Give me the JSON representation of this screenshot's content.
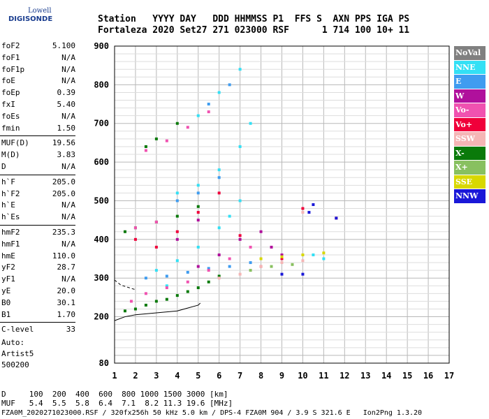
{
  "logo": {
    "line1": "Lowell",
    "line2": "DIGISONDE"
  },
  "header": {
    "row1": "Station   YYYY DAY   DDD HHMMSS P1  FFS S  AXN PPS IGA PS",
    "row2": "Fortaleza 2020 Set27 271 023000 RSF      1 714 100 10+ 11"
  },
  "params": [
    [
      {
        "k": "foF2",
        "v": "5.100"
      },
      {
        "k": "foF1",
        "v": "N/A"
      },
      {
        "k": "foF1p",
        "v": "N/A"
      },
      {
        "k": "foE",
        "v": "N/A"
      },
      {
        "k": "foEp",
        "v": "0.39"
      },
      {
        "k": "fxI",
        "v": "5.40"
      },
      {
        "k": "foEs",
        "v": "N/A"
      },
      {
        "k": "fmin",
        "v": "1.50"
      }
    ],
    [
      {
        "k": "MUF(D)",
        "v": "19.56"
      },
      {
        "k": "M(D)",
        "v": "3.83"
      },
      {
        "k": "D",
        "v": "N/A"
      }
    ],
    [
      {
        "k": "h`F",
        "v": "205.0"
      },
      {
        "k": "h`F2",
        "v": "205.0"
      },
      {
        "k": "h`E",
        "v": "N/A"
      },
      {
        "k": "h`Es",
        "v": "N/A"
      }
    ],
    [
      {
        "k": "hmF2",
        "v": "235.3"
      },
      {
        "k": "hmF1",
        "v": "N/A"
      },
      {
        "k": "hmE",
        "v": "110.0"
      },
      {
        "k": "yF2",
        "v": "28.7"
      },
      {
        "k": "yF1",
        "v": "N/A"
      },
      {
        "k": "yE",
        "v": "20.0"
      },
      {
        "k": "B0",
        "v": "30.1"
      },
      {
        "k": "B1",
        "v": "1.70"
      }
    ],
    [
      {
        "k": "C-level",
        "v": "33"
      }
    ]
  ],
  "auto": {
    "l1": "Auto:",
    "l2": "Artist5",
    "l3": "500200"
  },
  "legend": [
    {
      "label": "NoVal",
      "color": "#808080"
    },
    {
      "label": "NNE",
      "color": "#33e0f5"
    },
    {
      "label": "E",
      "color": "#3f9cf0"
    },
    {
      "label": "W",
      "color": "#b0109c"
    },
    {
      "label": "Vo-",
      "color": "#f052b0"
    },
    {
      "label": "Vo+",
      "color": "#f0003a"
    },
    {
      "label": "SSW",
      "color": "#f5b5b5"
    },
    {
      "label": "X-",
      "color": "#0a7a0a"
    },
    {
      "label": "X+",
      "color": "#88c060"
    },
    {
      "label": "SSE",
      "color": "#d8d800"
    },
    {
      "label": "NNW",
      "color": "#1a18d8"
    }
  ],
  "footer": {
    "row1": "D     100  200  400  600  800 1000 1500 3000 [km]",
    "row2": "MUF   5.4  5.5  5.8  6.4  7.1  8.2 11.3 19.6 [MHz]",
    "src": "FZA0M_2020271023000.RSF / 320fx256h 50 kHz 5.0 km / DPS-4 FZA0M 904 / 3.9 S 321.6 E   Ion2Png 1.3.20"
  },
  "chart_data": {
    "type": "scatter",
    "title": "",
    "xlabel": "",
    "ylabel": "",
    "xlim": [
      1,
      17
    ],
    "ylim": [
      80,
      900
    ],
    "x_ticks": [
      1,
      2,
      3,
      4,
      5,
      6,
      7,
      8,
      9,
      10,
      11,
      12,
      13,
      14,
      15,
      16,
      17
    ],
    "y_ticks": [
      80,
      200,
      300,
      400,
      500,
      600,
      700,
      800,
      900
    ],
    "grid": true,
    "series": [
      {
        "name": "X-",
        "color": "#0a7a0a",
        "points": [
          [
            1.5,
            215
          ],
          [
            2,
            220
          ],
          [
            2.5,
            230
          ],
          [
            3,
            240
          ],
          [
            3.5,
            245
          ],
          [
            4,
            255
          ],
          [
            4.5,
            265
          ],
          [
            5,
            275
          ],
          [
            5.5,
            290
          ],
          [
            6,
            305
          ],
          [
            1.5,
            420
          ],
          [
            2,
            430
          ],
          [
            3,
            445
          ],
          [
            4,
            460
          ],
          [
            5,
            485
          ],
          [
            2.5,
            640
          ],
          [
            3,
            660
          ],
          [
            4,
            700
          ]
        ]
      },
      {
        "name": "NNE",
        "color": "#33e0f5",
        "points": [
          [
            3,
            320
          ],
          [
            4,
            345
          ],
          [
            5,
            380
          ],
          [
            6,
            430
          ],
          [
            6.5,
            460
          ],
          [
            7,
            500
          ],
          [
            4,
            520
          ],
          [
            5,
            540
          ],
          [
            6,
            580
          ],
          [
            7,
            640
          ],
          [
            5,
            720
          ],
          [
            6,
            780
          ],
          [
            7,
            840
          ],
          [
            7.5,
            700
          ],
          [
            3.5,
            280
          ],
          [
            10.5,
            360
          ],
          [
            11,
            350
          ]
        ]
      },
      {
        "name": "E",
        "color": "#3f9cf0",
        "points": [
          [
            2.5,
            300
          ],
          [
            3.5,
            305
          ],
          [
            4.5,
            315
          ],
          [
            5.5,
            325
          ],
          [
            6.5,
            330
          ],
          [
            7.5,
            340
          ],
          [
            4,
            500
          ],
          [
            5,
            520
          ],
          [
            6,
            560
          ],
          [
            5.5,
            750
          ],
          [
            6.5,
            800
          ]
        ]
      },
      {
        "name": "Vo-",
        "color": "#f052b0",
        "points": [
          [
            1.8,
            240
          ],
          [
            2.5,
            260
          ],
          [
            3.5,
            275
          ],
          [
            4.5,
            290
          ],
          [
            5.5,
            320
          ],
          [
            6.5,
            350
          ],
          [
            7.5,
            380
          ],
          [
            2.5,
            630
          ],
          [
            3.5,
            655
          ],
          [
            4.5,
            690
          ],
          [
            5.5,
            730
          ],
          [
            2,
            430
          ],
          [
            3,
            445
          ]
        ]
      },
      {
        "name": "W",
        "color": "#b0109c",
        "points": [
          [
            5,
            330
          ],
          [
            6,
            360
          ],
          [
            7,
            400
          ],
          [
            8,
            420
          ],
          [
            8.5,
            380
          ],
          [
            9,
            360
          ],
          [
            4,
            400
          ],
          [
            5,
            450
          ]
        ]
      },
      {
        "name": "Vo+",
        "color": "#f0003a",
        "points": [
          [
            2,
            400
          ],
          [
            3,
            380
          ],
          [
            4,
            420
          ],
          [
            5,
            470
          ],
          [
            6,
            520
          ],
          [
            7,
            410
          ],
          [
            8,
            330
          ],
          [
            9,
            350
          ],
          [
            10,
            480
          ],
          [
            11.6,
            455
          ]
        ]
      },
      {
        "name": "NNW",
        "color": "#1a18d8",
        "points": [
          [
            10.5,
            490
          ],
          [
            10.3,
            470
          ],
          [
            9,
            310
          ],
          [
            10,
            310
          ],
          [
            11.6,
            455
          ]
        ]
      },
      {
        "name": "SSW",
        "color": "#f5b5b5",
        "points": [
          [
            6,
            300
          ],
          [
            7,
            310
          ],
          [
            8,
            330
          ],
          [
            9,
            340
          ],
          [
            10,
            345
          ],
          [
            10,
            470
          ]
        ]
      },
      {
        "name": "SSE",
        "color": "#d8d800",
        "points": [
          [
            8,
            350
          ],
          [
            9,
            355
          ],
          [
            10,
            360
          ],
          [
            11,
            365
          ]
        ]
      },
      {
        "name": "X+",
        "color": "#88c060",
        "points": [
          [
            7.5,
            320
          ],
          [
            8.5,
            330
          ],
          [
            9.5,
            335
          ]
        ]
      }
    ],
    "profile_curve": [
      [
        1,
        190
      ],
      [
        1.5,
        200
      ],
      [
        2,
        205
      ],
      [
        3,
        210
      ],
      [
        4,
        215
      ],
      [
        5,
        230
      ],
      [
        5.1,
        235.3
      ]
    ],
    "profile_dashed": [
      [
        1,
        295
      ],
      [
        1.3,
        282
      ],
      [
        1.7,
        275
      ],
      [
        2,
        270
      ]
    ]
  }
}
